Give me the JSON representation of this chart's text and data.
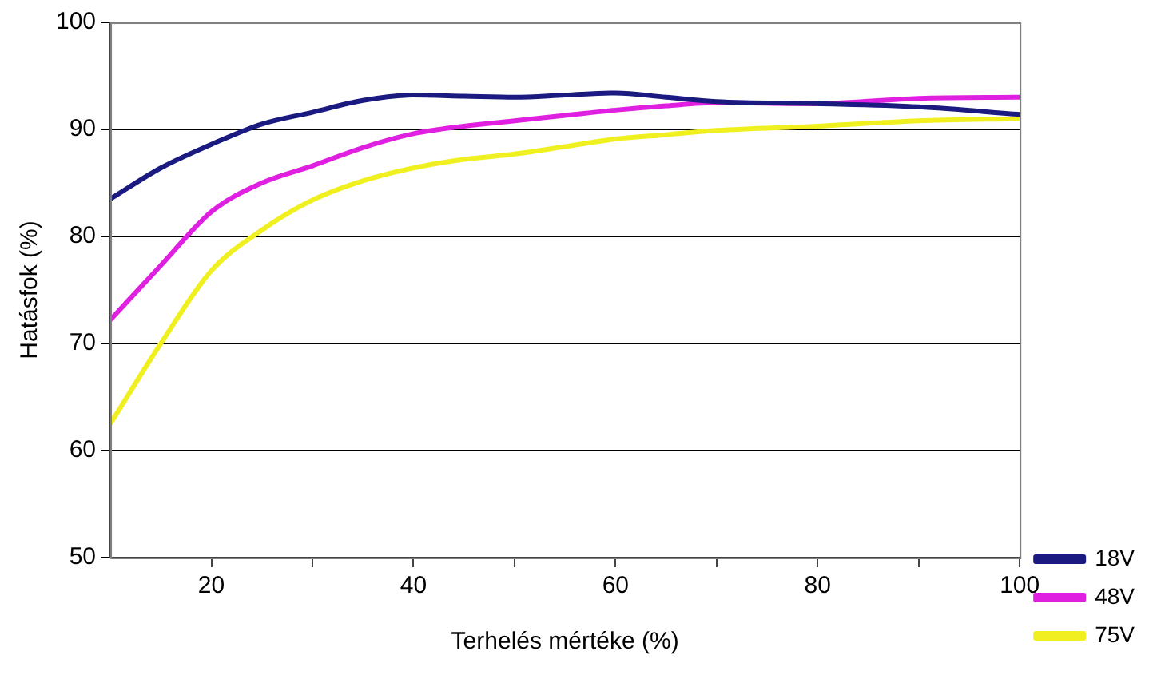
{
  "chart_data": {
    "type": "line",
    "xlabel": "Terhelés mértéke (%)",
    "ylabel": "Hatásfok (%)",
    "x": [
      10,
      15,
      20,
      25,
      30,
      35,
      40,
      45,
      50,
      55,
      60,
      65,
      70,
      80,
      90,
      100
    ],
    "series": [
      {
        "name": "18V",
        "color": "#1a1a80",
        "values": [
          83.5,
          86.4,
          88.6,
          90.5,
          91.6,
          92.7,
          93.2,
          93.1,
          93.0,
          93.2,
          93.4,
          93.0,
          92.6,
          92.4,
          92.1,
          91.4
        ]
      },
      {
        "name": "48V",
        "color": "#e020e0",
        "values": [
          72.2,
          77.3,
          82.3,
          85.0,
          86.6,
          88.3,
          89.6,
          90.3,
          90.8,
          91.3,
          91.8,
          92.2,
          92.5,
          92.4,
          92.9,
          93.0
        ]
      },
      {
        "name": "75V",
        "color": "#f0f020",
        "values": [
          62.5,
          70.0,
          76.8,
          80.6,
          83.4,
          85.2,
          86.4,
          87.2,
          87.7,
          88.4,
          89.1,
          89.5,
          89.9,
          90.3,
          90.8,
          91.0
        ]
      }
    ],
    "xlim": [
      10,
      100
    ],
    "xticks": [
      20,
      {
        "value": 30,
        "label": null
      },
      40,
      {
        "value": 50,
        "label": null
      },
      60,
      {
        "value": 70,
        "label": null
      },
      80,
      {
        "value": 90,
        "label": null
      },
      100
    ],
    "ylim": [
      50,
      100
    ],
    "yticks": [
      50,
      60,
      70,
      80,
      90,
      100
    ],
    "grid": "y",
    "legend": "right",
    "marker": "none",
    "line_style": "solid"
  }
}
